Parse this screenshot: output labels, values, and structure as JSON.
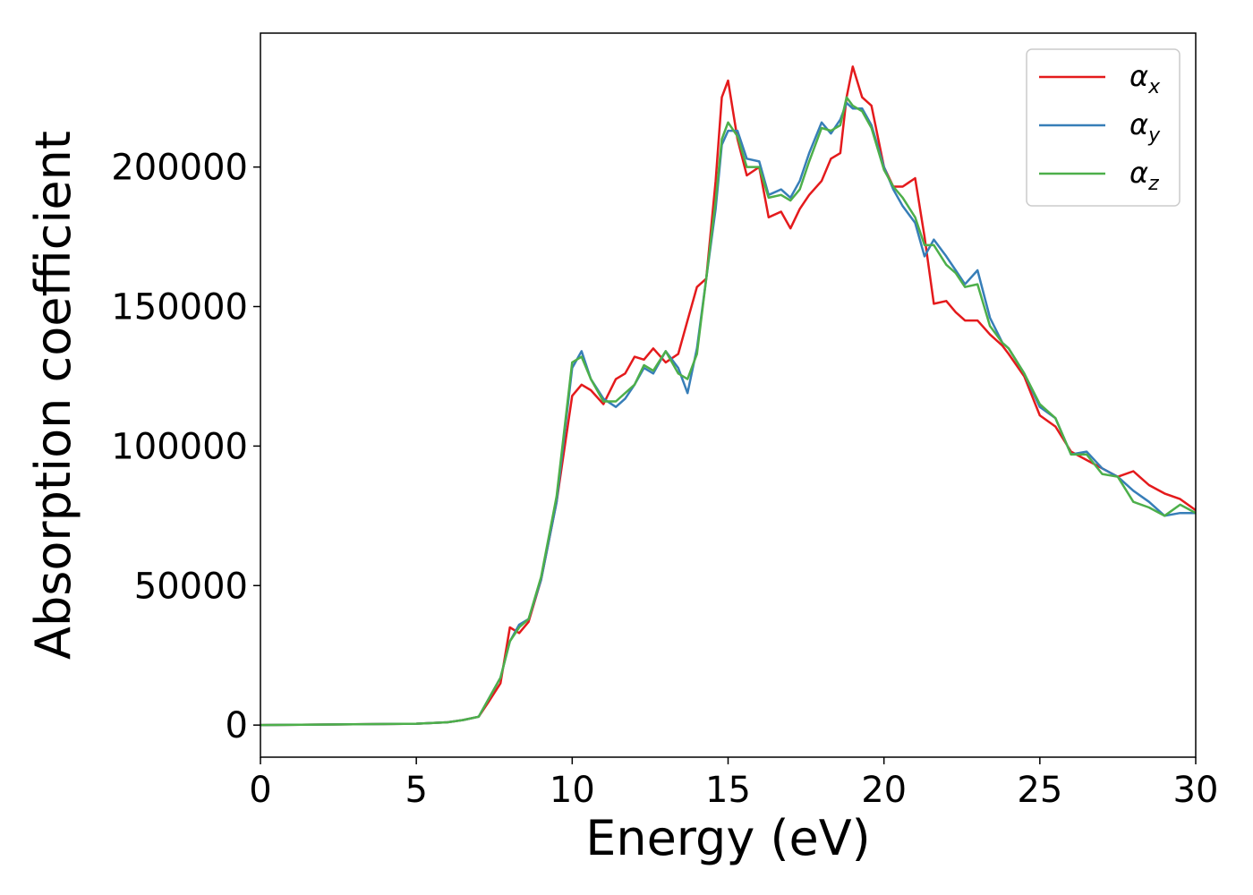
{
  "chart_data": {
    "type": "line",
    "title": "",
    "xlabel": "Energy (eV)",
    "ylabel": "Absorption coefficient",
    "xlim": [
      0,
      30
    ],
    "ylim": [
      -11500,
      248000
    ],
    "xticks": [
      0,
      5,
      10,
      15,
      20,
      25,
      30
    ],
    "xtick_labels": [
      "0",
      "5",
      "10",
      "15",
      "20",
      "25",
      "30"
    ],
    "yticks": [
      0,
      50000,
      100000,
      150000,
      200000
    ],
    "ytick_labels": [
      "0",
      "50000",
      "100000",
      "150000",
      "200000"
    ],
    "grid": false,
    "legend": "top-right",
    "series": [
      {
        "name": "α_x",
        "symbol": "α",
        "subscript": "x",
        "color": "#e41a1c",
        "x": [
          0,
          5,
          6,
          6.5,
          7,
          7.3,
          7.7,
          8,
          8.3,
          8.6,
          9,
          9.5,
          10,
          10.3,
          10.6,
          11,
          11.4,
          11.7,
          12,
          12.3,
          12.6,
          13,
          13.4,
          13.7,
          14,
          14.3,
          14.6,
          14.8,
          15,
          15.3,
          15.6,
          16,
          16.3,
          16.7,
          17,
          17.3,
          17.6,
          18,
          18.3,
          18.6,
          18.8,
          19,
          19.3,
          19.6,
          20,
          20.3,
          20.6,
          21,
          21.3,
          21.6,
          22,
          22.3,
          22.6,
          23,
          23.4,
          23.8,
          24,
          24.5,
          25,
          25.5,
          26,
          26.5,
          27,
          27.5,
          28,
          28.5,
          29,
          29.5,
          30
        ],
        "y": [
          0,
          500,
          1000,
          1800,
          3000,
          8000,
          15000,
          35000,
          33000,
          37000,
          52000,
          80000,
          118000,
          122000,
          120000,
          115000,
          124000,
          126000,
          132000,
          131000,
          135000,
          130000,
          133000,
          145000,
          157000,
          160000,
          195000,
          225000,
          231000,
          210000,
          197000,
          200000,
          182000,
          184000,
          178000,
          185000,
          190000,
          195000,
          203000,
          205000,
          225000,
          236000,
          225000,
          222000,
          200000,
          193000,
          193000,
          196000,
          175000,
          151000,
          152000,
          148000,
          145000,
          145000,
          140000,
          136000,
          133000,
          125000,
          111000,
          107000,
          98000,
          95000,
          92000,
          89000,
          91000,
          86000,
          83000,
          81000,
          77000
        ]
      },
      {
        "name": "α_y",
        "symbol": "α",
        "subscript": "y",
        "color": "#377eb8",
        "x": [
          0,
          5,
          6,
          6.5,
          7,
          7.3,
          7.7,
          8,
          8.3,
          8.6,
          9,
          9.5,
          10,
          10.3,
          10.6,
          11,
          11.4,
          11.7,
          12,
          12.3,
          12.6,
          13,
          13.4,
          13.7,
          14,
          14.3,
          14.6,
          14.8,
          15,
          15.3,
          15.6,
          16,
          16.3,
          16.7,
          17,
          17.3,
          17.6,
          18,
          18.3,
          18.6,
          18.8,
          19,
          19.3,
          19.6,
          20,
          20.3,
          20.6,
          21,
          21.3,
          21.6,
          22,
          22.3,
          22.6,
          23,
          23.4,
          23.8,
          24,
          24.5,
          25,
          25.5,
          26,
          26.5,
          27,
          27.5,
          28,
          28.5,
          29,
          29.5,
          30
        ],
        "y": [
          0,
          500,
          1000,
          1800,
          3000,
          9000,
          17000,
          30000,
          36000,
          38000,
          52000,
          80000,
          128000,
          134000,
          124000,
          117000,
          114000,
          117000,
          122000,
          128000,
          126000,
          134000,
          128000,
          119000,
          135000,
          160000,
          185000,
          208000,
          213000,
          213000,
          203000,
          202000,
          190000,
          192000,
          189000,
          195000,
          205000,
          216000,
          212000,
          217000,
          223000,
          221000,
          221000,
          215000,
          200000,
          192000,
          186000,
          180000,
          168000,
          174000,
          168000,
          163000,
          158000,
          163000,
          146000,
          137000,
          135000,
          126000,
          114000,
          110000,
          97000,
          98000,
          92000,
          89000,
          84000,
          80000,
          75000,
          76000,
          76000
        ]
      },
      {
        "name": "α_z",
        "symbol": "α",
        "subscript": "z",
        "color": "#4daf4a",
        "x": [
          0,
          5,
          6,
          6.5,
          7,
          7.3,
          7.7,
          8,
          8.3,
          8.6,
          9,
          9.5,
          10,
          10.3,
          10.6,
          11,
          11.4,
          11.7,
          12,
          12.3,
          12.6,
          13,
          13.4,
          13.7,
          14,
          14.3,
          14.6,
          14.8,
          15,
          15.3,
          15.6,
          16,
          16.3,
          16.7,
          17,
          17.3,
          17.6,
          18,
          18.3,
          18.6,
          18.8,
          19,
          19.3,
          19.6,
          20,
          20.3,
          20.6,
          21,
          21.3,
          21.6,
          22,
          22.3,
          22.6,
          23,
          23.4,
          23.8,
          24,
          24.5,
          25,
          25.5,
          26,
          26.5,
          27,
          27.5,
          28,
          28.5,
          29,
          29.5,
          30
        ],
        "y": [
          0,
          500,
          1000,
          1800,
          3000,
          9000,
          17000,
          30000,
          35000,
          38000,
          53000,
          82000,
          130000,
          132000,
          124000,
          116000,
          116000,
          119000,
          122000,
          129000,
          127000,
          134000,
          126000,
          124000,
          133000,
          160000,
          188000,
          210000,
          216000,
          211000,
          200000,
          200000,
          189000,
          190000,
          188000,
          192000,
          202000,
          214000,
          213000,
          215000,
          225000,
          222000,
          220000,
          214000,
          199000,
          193000,
          189000,
          182000,
          172000,
          172000,
          165000,
          162000,
          157000,
          158000,
          143000,
          137000,
          135000,
          126000,
          115000,
          110000,
          97000,
          97000,
          90000,
          89000,
          80000,
          78000,
          75000,
          79000,
          76000
        ]
      }
    ]
  }
}
